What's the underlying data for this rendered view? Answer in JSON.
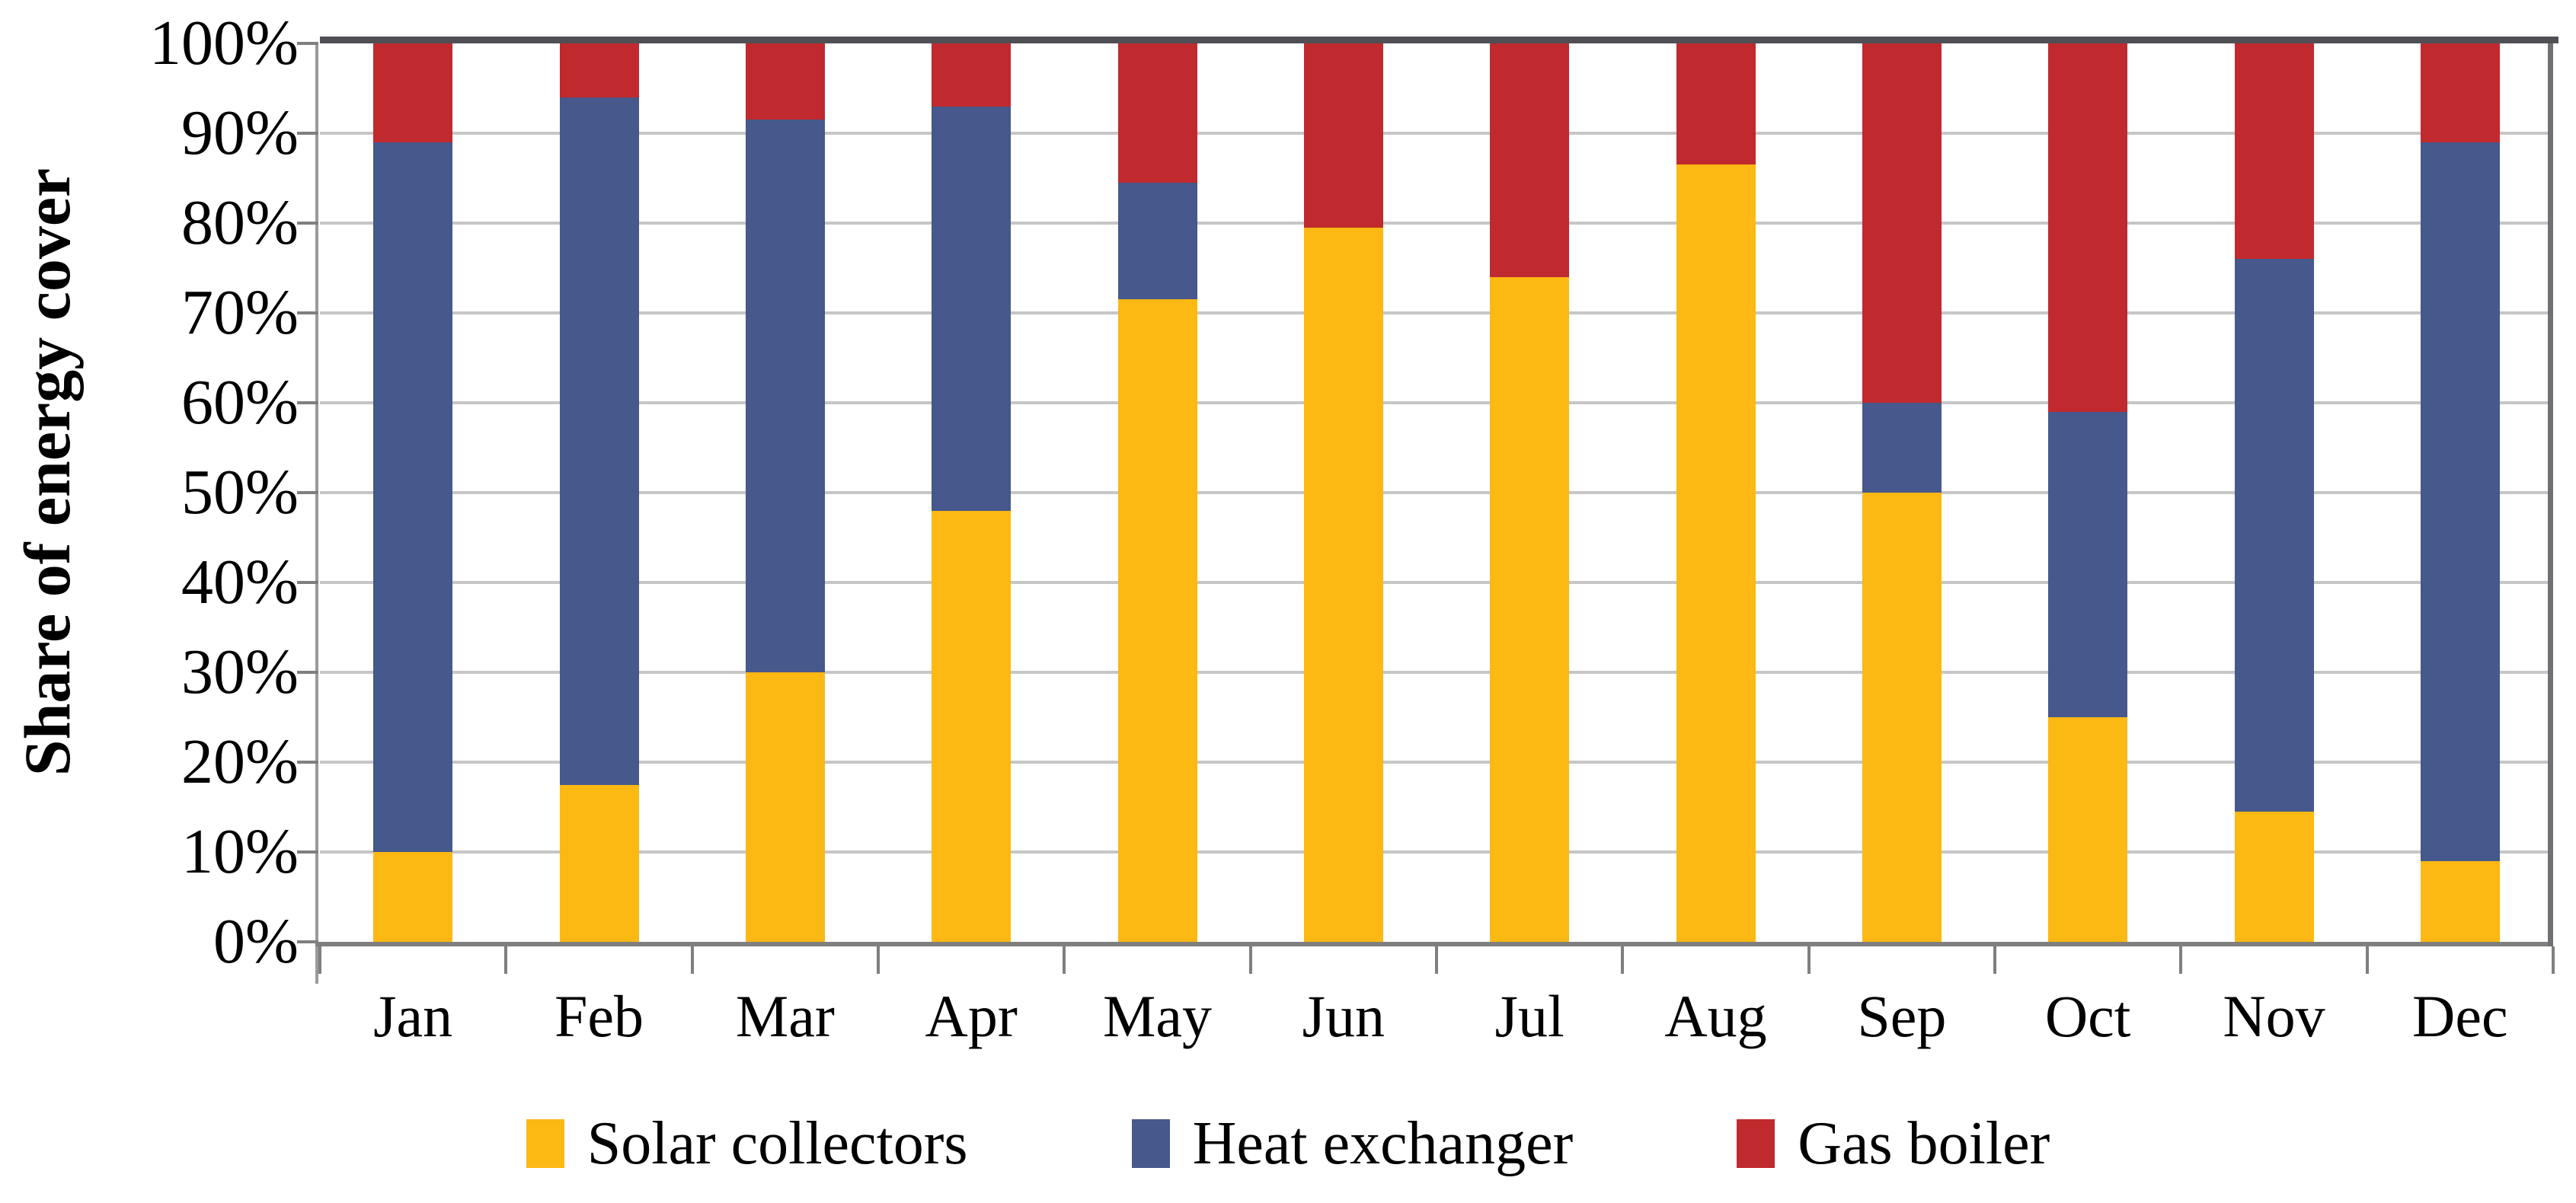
{
  "chart_data": {
    "type": "bar",
    "subtype": "stacked-100-percent",
    "title": "",
    "xlabel": "",
    "ylabel": "Share of energy cover",
    "ylim": [
      0,
      100
    ],
    "y_tick_step": 10,
    "grid": true,
    "legend_position": "bottom",
    "categories": [
      "Jan",
      "Feb",
      "Mar",
      "Apr",
      "May",
      "Jun",
      "Jul",
      "Aug",
      "Sep",
      "Oct",
      "Nov",
      "Dec"
    ],
    "y_ticks": [
      "0%",
      "10%",
      "20%",
      "30%",
      "40%",
      "50%",
      "60%",
      "70%",
      "80%",
      "90%",
      "100%"
    ],
    "series": [
      {
        "name": "Solar collectors",
        "color": "#FCB813",
        "values": [
          10,
          17.5,
          30,
          48,
          71.5,
          79.5,
          74,
          86.5,
          50,
          25,
          14.5,
          9
        ]
      },
      {
        "name": "Heat exchanger",
        "color": "#46588C",
        "values": [
          79,
          76.5,
          61.5,
          45,
          13,
          0,
          0,
          0,
          10,
          34,
          61.5,
          80
        ]
      },
      {
        "name": "Gas boiler",
        "color": "#C0292E",
        "values": [
          11,
          6,
          8.5,
          7,
          15.5,
          20.5,
          26,
          13.5,
          40,
          41,
          24,
          11
        ]
      }
    ]
  },
  "style": {
    "gridline_color": "#C6C6C6",
    "axis_color": "#7F7F7F",
    "top_border_color": "#4F4F54",
    "text_color": "#000000",
    "background": "#FFFFFF"
  }
}
